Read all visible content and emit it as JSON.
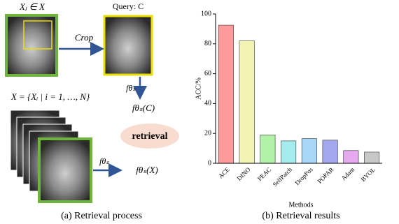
{
  "diagram": {
    "query_image_label": "Xⱼ ∈ X",
    "query_title": "Query: C",
    "crop_label": "Crop",
    "encoder_label_1": "fθₛ",
    "query_feature": "fθₛ(C)",
    "database_label": "X = {Xᵢ | i = 1, …, N}",
    "retrieval_button": "retrieval",
    "encoder_label_2": "fθₛ",
    "database_feature": "fθₛ(X)",
    "caption": "(a) Retrieval process"
  },
  "chart_data": {
    "type": "bar",
    "ylabel": "ACC/%",
    "xlabel": "Methods",
    "caption": "(b) Retrieval results",
    "categories": [
      "ACE",
      "DINO",
      "PEAC",
      "SelfPatch",
      "DropPos",
      "POPAR",
      "Adam",
      "BYOL"
    ],
    "values": [
      92.5,
      82,
      19,
      15,
      16.5,
      15.5,
      8.5,
      7.5
    ],
    "colors": [
      "#ff9a9a",
      "#f3f3b4",
      "#b2f2a8",
      "#a6ecee",
      "#a8d6f6",
      "#a4a8ee",
      "#e6a8ee",
      "#c8c8c8"
    ],
    "ylim": [
      0,
      100
    ],
    "yticks": [
      0,
      20,
      40,
      60,
      80,
      100
    ]
  }
}
